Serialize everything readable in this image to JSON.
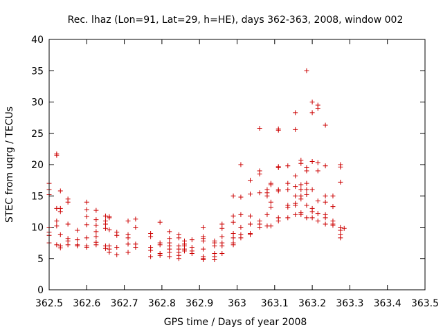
{
  "chart_data": {
    "type": "scatter",
    "title": "Rec. lhaz (Lon=91, Lat=29, h=HE), days 362-363, 2008, window 002",
    "xlabel": "GPS time / Days of year 2008",
    "ylabel": "STEC from uqrg / TECUs",
    "xlim": [
      362.5,
      363.5
    ],
    "ylim": [
      0,
      40
    ],
    "xticks": [
      362.5,
      362.6,
      362.7,
      362.8,
      362.9,
      363.0,
      363.1,
      363.2,
      363.3,
      363.4,
      363.5
    ],
    "xtick_labels": [
      "362.5",
      "362.6",
      "362.7",
      "362.8",
      "362.9",
      "363",
      "363.1",
      "363.2",
      "363.3",
      "363.4",
      "363.5"
    ],
    "yticks": [
      0,
      5,
      10,
      15,
      20,
      25,
      30,
      35,
      40
    ],
    "ytick_labels": [
      "0",
      "5",
      "10",
      "15",
      "20",
      "25",
      "30",
      "35",
      "40"
    ],
    "grid": false,
    "marker": "plus",
    "color": "#cc0000",
    "series": [
      {
        "points": [
          [
            362.5,
            17.0
          ],
          [
            362.5,
            16.0
          ],
          [
            362.5,
            15.2
          ],
          [
            362.5,
            10.0
          ],
          [
            362.5,
            9.2
          ],
          [
            362.5,
            8.7
          ],
          [
            362.5,
            7.5
          ],
          [
            362.52,
            21.7
          ],
          [
            362.52,
            21.5
          ],
          [
            362.52,
            13.0
          ],
          [
            362.52,
            11.0
          ],
          [
            362.52,
            10.2
          ],
          [
            362.52,
            7.2
          ],
          [
            362.53,
            15.8
          ],
          [
            362.53,
            13.0
          ],
          [
            362.53,
            12.5
          ],
          [
            362.53,
            8.8
          ],
          [
            362.53,
            7.0
          ],
          [
            362.53,
            6.7
          ],
          [
            362.55,
            14.5
          ],
          [
            362.55,
            14.0
          ],
          [
            362.55,
            10.5
          ],
          [
            362.55,
            8.2
          ],
          [
            362.55,
            7.8
          ],
          [
            362.55,
            7.2
          ],
          [
            362.575,
            9.5
          ],
          [
            362.575,
            8.0
          ],
          [
            362.575,
            7.2
          ],
          [
            362.575,
            7.0
          ],
          [
            362.6,
            14.0
          ],
          [
            362.6,
            12.8
          ],
          [
            362.6,
            11.7
          ],
          [
            362.6,
            10.4
          ],
          [
            362.6,
            8.3
          ],
          [
            362.6,
            7.0
          ],
          [
            362.6,
            6.8
          ],
          [
            362.625,
            12.7
          ],
          [
            362.625,
            11.2
          ],
          [
            362.625,
            10.3
          ],
          [
            362.625,
            9.3
          ],
          [
            362.625,
            8.5
          ],
          [
            362.625,
            7.6
          ],
          [
            362.625,
            7.2
          ],
          [
            362.65,
            11.8
          ],
          [
            362.65,
            11.0
          ],
          [
            362.65,
            10.5
          ],
          [
            362.65,
            9.8
          ],
          [
            362.65,
            7.0
          ],
          [
            362.65,
            6.6
          ],
          [
            362.66,
            11.7
          ],
          [
            362.66,
            11.5
          ],
          [
            362.66,
            9.6
          ],
          [
            362.66,
            7.0
          ],
          [
            362.66,
            6.5
          ],
          [
            362.66,
            6.0
          ],
          [
            362.68,
            9.2
          ],
          [
            362.68,
            8.7
          ],
          [
            362.68,
            6.8
          ],
          [
            362.68,
            5.6
          ],
          [
            362.71,
            11.0
          ],
          [
            362.71,
            8.8
          ],
          [
            362.71,
            8.3
          ],
          [
            362.71,
            7.3
          ],
          [
            362.71,
            6.0
          ],
          [
            362.73,
            11.3
          ],
          [
            362.73,
            10.0
          ],
          [
            362.73,
            7.3
          ],
          [
            362.73,
            6.8
          ],
          [
            362.77,
            9.0
          ],
          [
            362.77,
            8.5
          ],
          [
            362.77,
            6.8
          ],
          [
            362.77,
            6.3
          ],
          [
            362.77,
            5.3
          ],
          [
            362.795,
            10.8
          ],
          [
            362.795,
            7.5
          ],
          [
            362.795,
            7.2
          ],
          [
            362.795,
            5.8
          ],
          [
            362.795,
            5.5
          ],
          [
            362.82,
            9.3
          ],
          [
            362.82,
            8.2
          ],
          [
            362.82,
            7.5
          ],
          [
            362.82,
            7.0
          ],
          [
            362.82,
            6.5
          ],
          [
            362.82,
            6.0
          ],
          [
            362.82,
            5.3
          ],
          [
            362.845,
            8.8
          ],
          [
            362.845,
            8.3
          ],
          [
            362.845,
            7.0
          ],
          [
            362.845,
            6.5
          ],
          [
            362.845,
            6.0
          ],
          [
            362.845,
            5.5
          ],
          [
            362.845,
            5.0
          ],
          [
            362.86,
            7.8
          ],
          [
            362.86,
            7.3
          ],
          [
            362.86,
            7.0
          ],
          [
            362.86,
            6.5
          ],
          [
            362.86,
            6.2
          ],
          [
            362.88,
            8.0
          ],
          [
            362.88,
            6.8
          ],
          [
            362.88,
            6.2
          ],
          [
            362.88,
            5.8
          ],
          [
            362.91,
            10.0
          ],
          [
            362.91,
            8.5
          ],
          [
            362.91,
            8.2
          ],
          [
            362.91,
            7.8
          ],
          [
            362.91,
            6.5
          ],
          [
            362.91,
            5.3
          ],
          [
            362.91,
            5.0
          ],
          [
            362.91,
            4.8
          ],
          [
            362.94,
            7.8
          ],
          [
            362.94,
            7.5
          ],
          [
            362.94,
            7.0
          ],
          [
            362.94,
            5.8
          ],
          [
            362.94,
            5.3
          ],
          [
            362.94,
            4.8
          ],
          [
            362.96,
            10.5
          ],
          [
            362.96,
            9.8
          ],
          [
            362.96,
            8.5
          ],
          [
            362.96,
            7.5
          ],
          [
            362.96,
            7.0
          ],
          [
            362.96,
            5.8
          ],
          [
            362.99,
            15.0
          ],
          [
            362.99,
            11.8
          ],
          [
            362.99,
            10.8
          ],
          [
            362.99,
            9.0
          ],
          [
            362.99,
            8.3
          ],
          [
            362.99,
            7.5
          ],
          [
            362.99,
            7.2
          ],
          [
            363.01,
            20.0
          ],
          [
            363.01,
            14.8
          ],
          [
            363.01,
            12.0
          ],
          [
            363.01,
            10.0
          ],
          [
            363.01,
            8.8
          ],
          [
            363.01,
            8.3
          ],
          [
            363.035,
            17.5
          ],
          [
            363.035,
            15.3
          ],
          [
            363.035,
            11.8
          ],
          [
            363.035,
            10.5
          ],
          [
            363.035,
            9.0
          ],
          [
            363.035,
            8.8
          ],
          [
            363.06,
            25.8
          ],
          [
            363.06,
            19.0
          ],
          [
            363.06,
            18.5
          ],
          [
            363.06,
            15.5
          ],
          [
            363.06,
            11.0
          ],
          [
            363.06,
            10.5
          ],
          [
            363.06,
            10.0
          ],
          [
            363.08,
            16.0
          ],
          [
            363.08,
            15.5
          ],
          [
            363.08,
            15.0
          ],
          [
            363.08,
            12.0
          ],
          [
            363.08,
            10.2
          ],
          [
            363.09,
            17.0
          ],
          [
            363.09,
            16.8
          ],
          [
            363.09,
            14.0
          ],
          [
            363.09,
            13.2
          ],
          [
            363.09,
            10.2
          ],
          [
            363.11,
            25.7
          ],
          [
            363.11,
            25.5
          ],
          [
            363.11,
            19.7
          ],
          [
            363.11,
            19.5
          ],
          [
            363.11,
            16.0
          ],
          [
            363.11,
            15.8
          ],
          [
            363.11,
            11.5
          ],
          [
            363.11,
            11.0
          ],
          [
            363.135,
            19.8
          ],
          [
            363.135,
            17.0
          ],
          [
            363.135,
            16.0
          ],
          [
            363.135,
            13.5
          ],
          [
            363.135,
            13.2
          ],
          [
            363.135,
            11.5
          ],
          [
            363.155,
            28.3
          ],
          [
            363.155,
            25.6
          ],
          [
            363.155,
            18.2
          ],
          [
            363.155,
            16.5
          ],
          [
            363.155,
            15.0
          ],
          [
            363.155,
            13.8
          ],
          [
            363.155,
            13.5
          ],
          [
            363.155,
            12.0
          ],
          [
            363.17,
            20.7
          ],
          [
            363.17,
            20.2
          ],
          [
            363.17,
            16.8
          ],
          [
            363.17,
            16.0
          ],
          [
            363.17,
            15.0
          ],
          [
            363.17,
            14.5
          ],
          [
            363.17,
            12.3
          ],
          [
            363.17,
            12.0
          ],
          [
            363.185,
            35.0
          ],
          [
            363.185,
            19.5
          ],
          [
            363.185,
            19.0
          ],
          [
            363.185,
            17.0
          ],
          [
            363.185,
            16.0
          ],
          [
            363.185,
            15.2
          ],
          [
            363.185,
            13.5
          ],
          [
            363.185,
            11.5
          ],
          [
            363.2,
            30.0
          ],
          [
            363.2,
            28.3
          ],
          [
            363.2,
            20.5
          ],
          [
            363.2,
            16.0
          ],
          [
            363.2,
            13.0
          ],
          [
            363.2,
            12.5
          ],
          [
            363.2,
            11.5
          ],
          [
            363.215,
            29.5
          ],
          [
            363.215,
            29.0
          ],
          [
            363.215,
            20.3
          ],
          [
            363.215,
            19.0
          ],
          [
            363.215,
            14.2
          ],
          [
            363.215,
            12.2
          ],
          [
            363.215,
            11.0
          ],
          [
            363.235,
            26.3
          ],
          [
            363.235,
            19.8
          ],
          [
            363.235,
            15.0
          ],
          [
            363.235,
            14.0
          ],
          [
            363.235,
            12.0
          ],
          [
            363.235,
            11.5
          ],
          [
            363.235,
            10.5
          ],
          [
            363.255,
            15.0
          ],
          [
            363.255,
            13.3
          ],
          [
            363.255,
            11.0
          ],
          [
            363.255,
            10.5
          ],
          [
            363.255,
            10.3
          ],
          [
            363.275,
            20.0
          ],
          [
            363.275,
            19.6
          ],
          [
            363.275,
            17.2
          ],
          [
            363.275,
            10.0
          ],
          [
            363.275,
            9.5
          ],
          [
            363.275,
            8.8
          ],
          [
            363.275,
            8.3
          ],
          [
            363.285,
            9.8
          ]
        ]
      }
    ]
  }
}
